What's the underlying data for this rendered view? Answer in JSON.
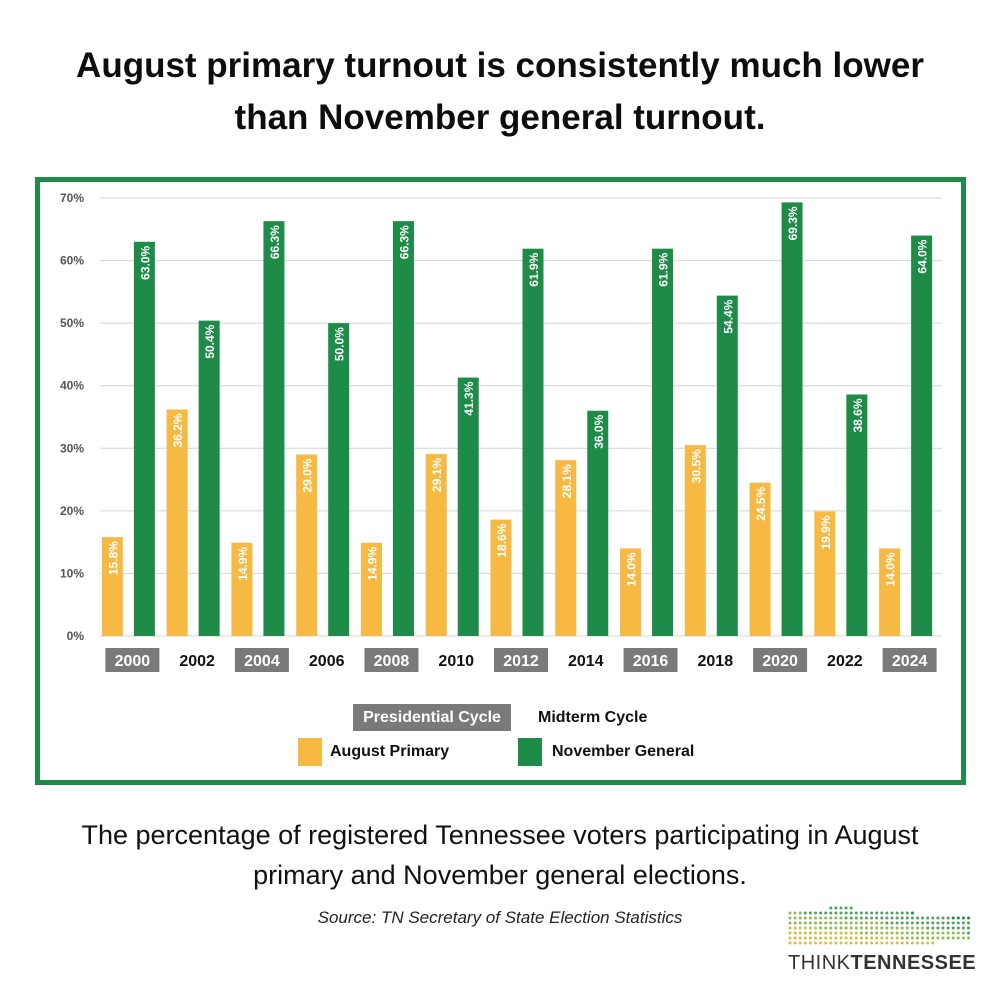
{
  "headline": "August primary turnout is consistently much lower than November general turnout.",
  "caption": "The percentage of registered Tennessee voters participating in August primary and November general elections.",
  "source": "Source: TN Secretary of State Election Statistics",
  "logo": {
    "word1": "THINK",
    "word2": "TENNESSEE"
  },
  "legend": {
    "presidential": "Presidential Cycle",
    "midterm": "Midterm Cycle",
    "primary": "August Primary",
    "general": "November General"
  },
  "colors": {
    "primary": "#f5b944",
    "general": "#1e8b48",
    "frame": "#1e8b48",
    "presidential_tag": "#7a7a7a",
    "grid": "#d4d4d4",
    "axis_text": "#555555"
  },
  "chart_data": {
    "type": "bar",
    "categories": [
      "2000",
      "2002",
      "2004",
      "2006",
      "2008",
      "2010",
      "2012",
      "2014",
      "2016",
      "2018",
      "2020",
      "2022",
      "2024"
    ],
    "presidential_years": [
      "2000",
      "2004",
      "2008",
      "2012",
      "2016",
      "2020",
      "2024"
    ],
    "series": [
      {
        "name": "August Primary",
        "values": [
          15.8,
          36.2,
          14.9,
          29.0,
          14.9,
          29.1,
          18.6,
          28.1,
          14.0,
          30.5,
          24.5,
          19.9,
          14.0
        ]
      },
      {
        "name": "November General",
        "values": [
          63.0,
          50.4,
          66.3,
          50.0,
          66.3,
          41.3,
          61.9,
          36.0,
          61.9,
          54.4,
          69.3,
          38.6,
          64.0
        ]
      }
    ],
    "yticks": [
      "0%",
      "10%",
      "20%",
      "30%",
      "40%",
      "50%",
      "60%",
      "70%"
    ],
    "ylim": [
      0,
      70
    ],
    "value_suffix": "%",
    "grid": true,
    "legend_position": "bottom"
  }
}
